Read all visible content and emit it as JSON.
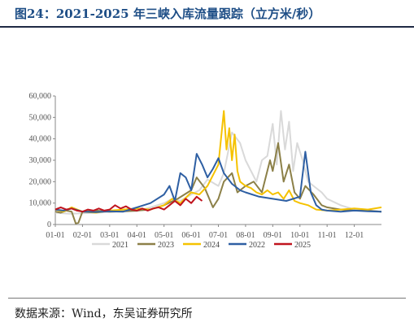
{
  "title": "图24：2021-2025 年三峡入库流量跟踪（立方米/秒）",
  "source": "数据来源：Wind，东吴证券研究所",
  "chart_data": {
    "type": "line",
    "title": "图24：2021-2025 年三峡入库流量跟踪（立方米/秒）",
    "xlabel": "",
    "ylabel": "",
    "x_ticks": [
      "01-01",
      "02-01",
      "03-01",
      "04-01",
      "05-01",
      "06-01",
      "07-01",
      "08-01",
      "09-01",
      "10-01",
      "11-01",
      "12-01"
    ],
    "y_ticks": [
      "0",
      "10,000",
      "20,000",
      "30,000",
      "40,000",
      "50,000",
      "60,000"
    ],
    "ylim": [
      0,
      60000
    ],
    "xlim_month": [
      1,
      13
    ],
    "grid": false,
    "legend_position": "bottom",
    "series": [
      {
        "name": "2021",
        "color": "#d9d9d9",
        "x": [
          1.0,
          1.5,
          2.0,
          2.5,
          3.0,
          3.5,
          4.0,
          4.5,
          5.0,
          5.3,
          5.6,
          6.0,
          6.3,
          6.6,
          7.0,
          7.2,
          7.5,
          7.8,
          8.0,
          8.2,
          8.4,
          8.6,
          8.8,
          9.0,
          9.15,
          9.3,
          9.45,
          9.6,
          9.75,
          9.9,
          10.1,
          10.3,
          10.5,
          10.8,
          11.0,
          11.5,
          12.0,
          12.5,
          13.0
        ],
        "y": [
          5500,
          5000,
          5200,
          5500,
          5800,
          6000,
          6200,
          8000,
          10000,
          12000,
          11000,
          14000,
          16000,
          21000,
          18000,
          24000,
          43000,
          38000,
          30000,
          25000,
          20000,
          30000,
          32000,
          47000,
          28000,
          53000,
          35000,
          48000,
          25000,
          38000,
          30000,
          20000,
          18000,
          15000,
          12000,
          9000,
          7000,
          6500,
          6000
        ]
      },
      {
        "name": "2023",
        "color": "#8c8048",
        "x": [
          1.0,
          1.2,
          1.4,
          1.6,
          1.75,
          1.85,
          2.0,
          2.5,
          3.0,
          3.5,
          4.0,
          4.5,
          5.0,
          5.5,
          6.0,
          6.2,
          6.5,
          6.8,
          7.0,
          7.2,
          7.5,
          7.7,
          8.0,
          8.3,
          8.6,
          8.9,
          9.0,
          9.2,
          9.4,
          9.6,
          9.8,
          10.0,
          10.2,
          10.5,
          10.8,
          11.0,
          11.5,
          12.0,
          12.5,
          13.0
        ],
        "y": [
          6000,
          5500,
          6500,
          6000,
          500,
          800,
          6000,
          6500,
          6000,
          6200,
          6500,
          7000,
          9000,
          12000,
          16000,
          22000,
          17000,
          8000,
          12000,
          20000,
          24000,
          15000,
          18000,
          20000,
          15000,
          30000,
          25000,
          38000,
          20000,
          28000,
          15000,
          12000,
          18000,
          14000,
          9000,
          8000,
          7000,
          6500,
          6500,
          6000
        ]
      },
      {
        "name": "2024",
        "color": "#f5c200",
        "x": [
          1.0,
          1.3,
          1.6,
          2.0,
          2.5,
          3.0,
          3.5,
          4.0,
          4.5,
          5.0,
          5.3,
          5.6,
          6.0,
          6.3,
          6.6,
          7.0,
          7.2,
          7.3,
          7.4,
          7.5,
          7.6,
          7.7,
          7.8,
          8.0,
          8.2,
          8.4,
          8.6,
          8.8,
          9.0,
          9.2,
          9.4,
          9.6,
          9.8,
          10.0,
          10.3,
          10.6,
          11.0,
          11.5,
          12.0,
          12.5,
          13.0
        ],
        "y": [
          7000,
          6000,
          8000,
          6000,
          5500,
          6500,
          7000,
          7500,
          7000,
          9000,
          12000,
          10000,
          15000,
          14000,
          18000,
          28000,
          53000,
          35000,
          45000,
          30000,
          42000,
          25000,
          20000,
          18000,
          17000,
          15000,
          14000,
          16000,
          14000,
          15000,
          12000,
          16000,
          11000,
          10000,
          9000,
          7000,
          6500,
          7000,
          7500,
          7000,
          8000
        ]
      },
      {
        "name": "2022",
        "color": "#2e5fa3",
        "x": [
          1.0,
          1.3,
          1.6,
          2.0,
          2.5,
          3.0,
          3.5,
          4.0,
          4.5,
          5.0,
          5.2,
          5.4,
          5.6,
          5.8,
          6.0,
          6.2,
          6.4,
          6.6,
          6.8,
          7.0,
          7.2,
          7.5,
          7.8,
          8.0,
          8.5,
          9.0,
          9.5,
          10.0,
          10.2,
          10.4,
          10.6,
          10.8,
          11.0,
          11.5,
          12.0,
          12.5,
          13.0
        ],
        "y": [
          7000,
          6500,
          7500,
          6000,
          5800,
          6200,
          6000,
          8000,
          10000,
          14000,
          18000,
          11000,
          24000,
          22000,
          16000,
          33000,
          28000,
          22000,
          26000,
          31000,
          24000,
          19000,
          16000,
          15000,
          13000,
          12000,
          11000,
          13000,
          34000,
          15000,
          9000,
          7000,
          6500,
          6000,
          6500,
          6200,
          6000
        ]
      },
      {
        "name": "2025",
        "color": "#c0141e",
        "x": [
          1.0,
          1.2,
          1.4,
          1.6,
          1.8,
          2.0,
          2.2,
          2.4,
          2.6,
          2.8,
          3.0,
          3.2,
          3.4,
          3.6,
          3.8,
          4.0,
          4.2,
          4.4,
          4.6,
          4.8,
          5.0,
          5.2,
          5.4,
          5.6,
          5.8,
          6.0,
          6.2,
          6.4
        ],
        "y": [
          7000,
          8000,
          7000,
          7500,
          6500,
          6000,
          7000,
          6500,
          7500,
          6500,
          7000,
          9000,
          7500,
          8500,
          7000,
          6500,
          7500,
          6500,
          7500,
          8000,
          7000,
          9000,
          11000,
          9000,
          12000,
          10000,
          13000,
          11000
        ]
      }
    ]
  }
}
